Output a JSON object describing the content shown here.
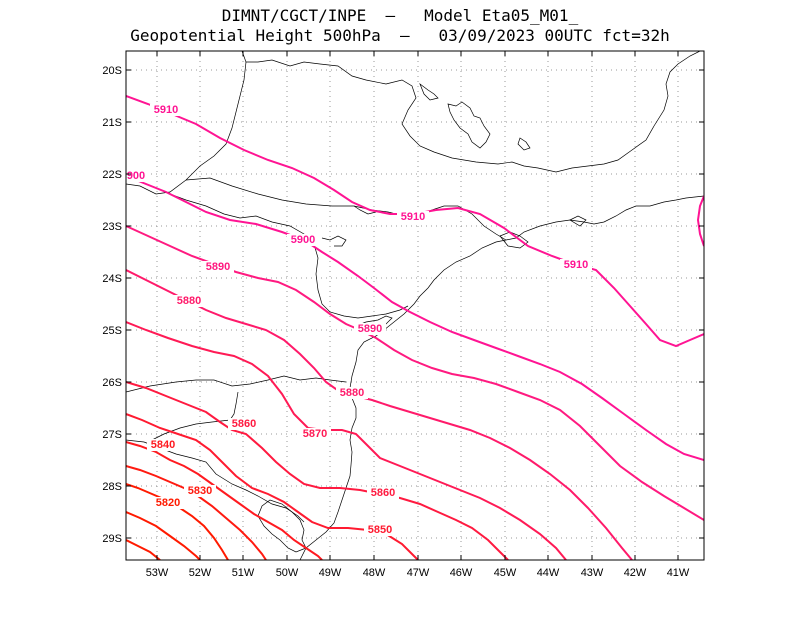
{
  "header": {
    "line1": "DIMNT/CGCT/INPE  –   Model Eta05_M01_",
    "line2": "Geopotential Height 500hPa  –   03/09/2023 00UTC fct=32h"
  },
  "axes": {
    "lat_labels": [
      "20S",
      "21S",
      "22S",
      "23S",
      "24S",
      "25S",
      "26S",
      "27S",
      "28S",
      "29S"
    ],
    "lon_labels": [
      "53W",
      "52W",
      "51W",
      "50W",
      "49W",
      "48W",
      "47W",
      "46W",
      "45W",
      "44W",
      "43W",
      "42W",
      "41W"
    ]
  },
  "contours": [
    {
      "level": "5910",
      "color": "#ff1493"
    },
    {
      "level": "5900",
      "color": "#ff1493"
    },
    {
      "level": "5890",
      "color": "#ff1a80"
    },
    {
      "level": "5880",
      "color": "#ff1a6a"
    },
    {
      "level": "5870",
      "color": "#ff1a55"
    },
    {
      "level": "5860",
      "color": "#ff1a40"
    },
    {
      "level": "5850",
      "color": "#ff1a30"
    },
    {
      "level": "5840",
      "color": "#ff1a20"
    },
    {
      "level": "5830",
      "color": "#ff1a10"
    },
    {
      "level": "5820",
      "color": "#ff1a00"
    }
  ],
  "contour_labels": [
    {
      "text": "5910",
      "color": "#ff1493"
    },
    {
      "text": "5910",
      "color": "#ff1493"
    },
    {
      "text": "5910",
      "color": "#ff1493"
    },
    {
      "text": "900",
      "color": "#ff1493"
    },
    {
      "text": "5900",
      "color": "#ff1493"
    },
    {
      "text": "5890",
      "color": "#ff1a80"
    },
    {
      "text": "5890",
      "color": "#ff1a80"
    },
    {
      "text": "5880",
      "color": "#ff1a6a"
    },
    {
      "text": "5880",
      "color": "#ff1a6a"
    },
    {
      "text": "5870",
      "color": "#ff1a55"
    },
    {
      "text": "5860",
      "color": "#ff1a40"
    },
    {
      "text": "5860",
      "color": "#ff1a40"
    },
    {
      "text": "5850",
      "color": "#ff1a30"
    },
    {
      "text": "5840",
      "color": "#ff1a20"
    },
    {
      "text": "5830",
      "color": "#ff1a10"
    },
    {
      "text": "5820",
      "color": "#ff1a00"
    }
  ]
}
